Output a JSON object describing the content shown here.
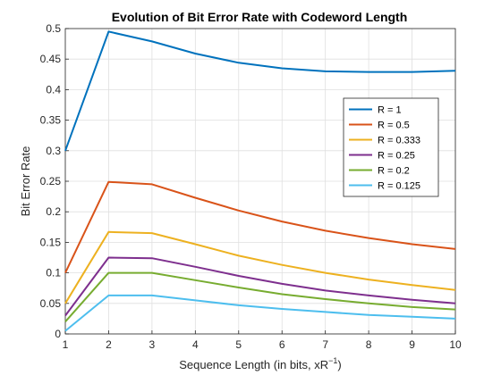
{
  "chart_data": {
    "type": "line",
    "title": "Evolution of Bit Error Rate with Codeword Length",
    "xlabel": "Sequence Length (in bits, xR",
    "xlabel_sup": "−1",
    "xlabel_end": ")",
    "ylabel": "Bit Error Rate",
    "xlim": [
      1,
      10
    ],
    "ylim": [
      0,
      0.5
    ],
    "grid": true,
    "legend_position": "right",
    "x_ticks": [
      "1",
      "2",
      "3",
      "4",
      "5",
      "6",
      "7",
      "8",
      "9",
      "10"
    ],
    "y_ticks": [
      "0",
      "0.05",
      "0.1",
      "0.15",
      "0.2",
      "0.25",
      "0.3",
      "0.35",
      "0.4",
      "0.45",
      "0.5"
    ],
    "x": [
      1,
      2,
      3,
      4,
      5,
      6,
      7,
      8,
      9,
      10
    ],
    "series": [
      {
        "name": "R = 1",
        "color": "#0072BD",
        "values": [
          0.3,
          0.495,
          0.479,
          0.459,
          0.444,
          0.435,
          0.43,
          0.429,
          0.429,
          0.431
        ]
      },
      {
        "name": "R = 0.5",
        "color": "#D95319",
        "values": [
          0.1,
          0.249,
          0.245,
          0.223,
          0.202,
          0.184,
          0.169,
          0.157,
          0.147,
          0.139
        ]
      },
      {
        "name": "R = 0.333",
        "color": "#EDB120",
        "values": [
          0.05,
          0.167,
          0.165,
          0.147,
          0.128,
          0.113,
          0.1,
          0.089,
          0.08,
          0.072
        ]
      },
      {
        "name": "R = 0.25",
        "color": "#7E2F8E",
        "values": [
          0.03,
          0.125,
          0.124,
          0.11,
          0.095,
          0.082,
          0.071,
          0.063,
          0.056,
          0.05
        ]
      },
      {
        "name": "R = 0.2",
        "color": "#77AC30",
        "values": [
          0.02,
          0.1,
          0.1,
          0.088,
          0.076,
          0.065,
          0.057,
          0.05,
          0.044,
          0.04
        ]
      },
      {
        "name": "R = 0.125",
        "color": "#4DBEEE",
        "values": [
          0.005,
          0.063,
          0.063,
          0.055,
          0.047,
          0.041,
          0.036,
          0.031,
          0.028,
          0.025
        ]
      }
    ]
  }
}
